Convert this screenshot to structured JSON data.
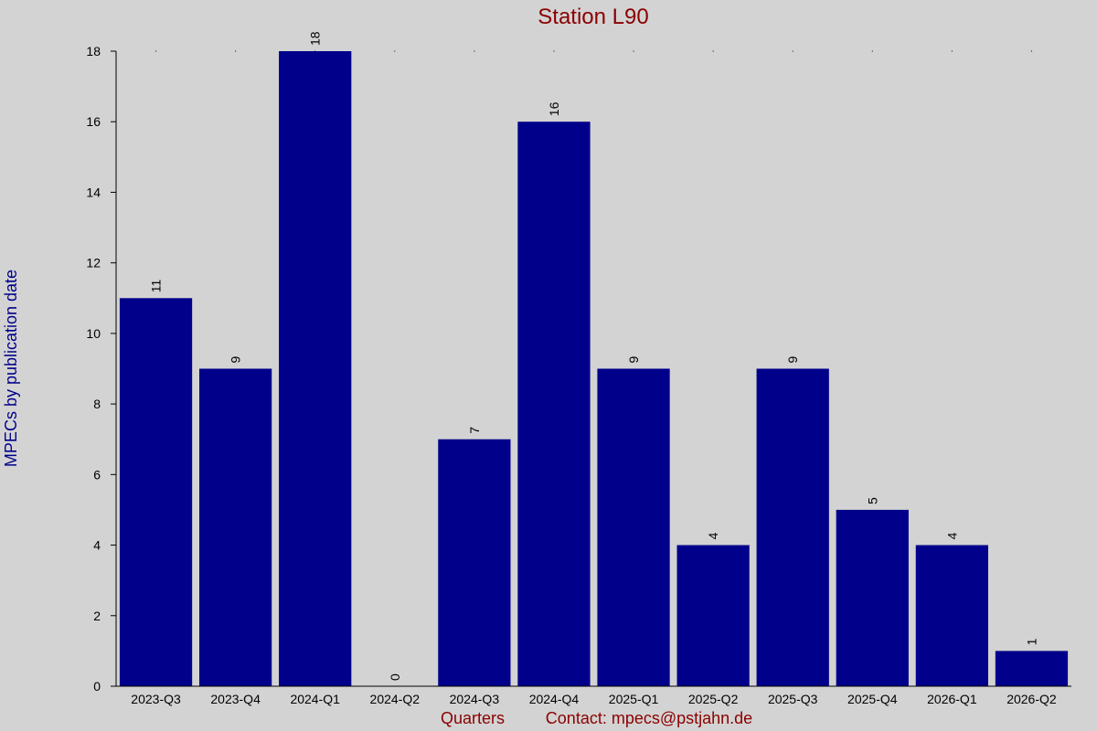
{
  "chart_data": {
    "type": "bar",
    "title": "Station L90",
    "xlabel": "Quarters",
    "ylabel": "MPECs by publication date",
    "contact": "Contact: mpecs@pstjahn.de",
    "categories": [
      "2023-Q3",
      "2023-Q4",
      "2024-Q1",
      "2024-Q2",
      "2024-Q3",
      "2024-Q4",
      "2025-Q1",
      "2025-Q2",
      "2025-Q3",
      "2025-Q4",
      "2026-Q1",
      "2026-Q2"
    ],
    "values": [
      11,
      9,
      18,
      0,
      7,
      16,
      9,
      4,
      9,
      5,
      4,
      1
    ],
    "ylim": [
      0,
      18
    ],
    "yticks": [
      0,
      2,
      4,
      6,
      8,
      10,
      12,
      14,
      16,
      18
    ],
    "grid": false,
    "colors": {
      "bar": "#00008b",
      "background": "#d3d3d3",
      "title": "#8b0000",
      "ylabel": "#00008b"
    }
  }
}
